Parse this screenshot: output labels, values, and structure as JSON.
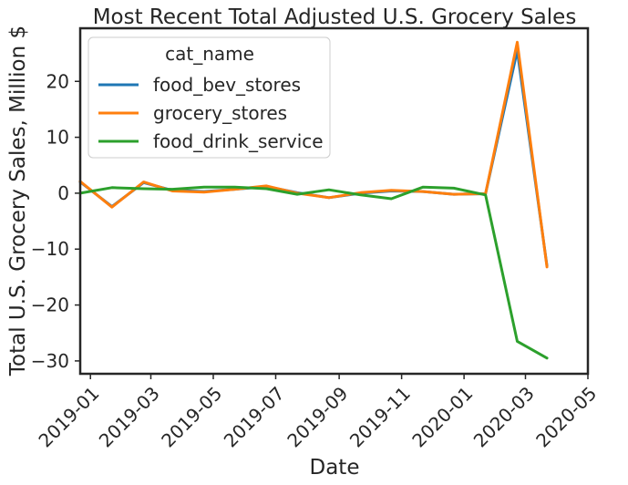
{
  "chart_data": {
    "type": "line",
    "title": "Most Recent Total Adjusted U.S. Grocery Sales",
    "xlabel": "Date",
    "ylabel": "Total U.S. Grocery Sales, Million $",
    "x_ticks": [
      "2019-01",
      "2019-03",
      "2019-05",
      "2019-07",
      "2019-09",
      "2019-11",
      "2020-01",
      "2020-03",
      "2020-05"
    ],
    "y_ticks": [
      20,
      10,
      0,
      -10,
      -20,
      -30
    ],
    "xlim": [
      "2018-12-22",
      "2020-05-01"
    ],
    "ylim": [
      -32.3,
      29.5
    ],
    "legend": {
      "title": "cat_name",
      "placement": "top-left"
    },
    "x": [
      "2018-12-22",
      "2019-01-22",
      "2019-02-22",
      "2019-03-22",
      "2019-04-22",
      "2019-05-22",
      "2019-06-22",
      "2019-07-22",
      "2019-08-22",
      "2019-09-22",
      "2019-10-22",
      "2019-11-22",
      "2019-12-22",
      "2020-01-22",
      "2020-02-22",
      "2020-03-22"
    ],
    "series": [
      {
        "name": "food_bev_stores",
        "color": "#1f77b4",
        "values": [
          2.0,
          -2.4,
          1.9,
          0.5,
          0.3,
          0.7,
          1.2,
          0.1,
          -0.8,
          0.0,
          0.4,
          0.3,
          -0.2,
          -0.1,
          25.5,
          -13.0
        ]
      },
      {
        "name": "grocery_stores",
        "color": "#ff7f0e",
        "values": [
          2.1,
          -2.5,
          2.0,
          0.4,
          0.2,
          0.7,
          1.3,
          0.0,
          -0.8,
          0.1,
          0.5,
          0.3,
          -0.2,
          -0.1,
          27.0,
          -13.2
        ]
      },
      {
        "name": "food_drink_service",
        "color": "#2ca02c",
        "values": [
          0.0,
          1.0,
          0.8,
          0.7,
          1.1,
          1.1,
          0.8,
          -0.2,
          0.6,
          -0.3,
          -1.0,
          1.1,
          0.9,
          -0.3,
          -26.5,
          -29.5
        ]
      }
    ]
  }
}
